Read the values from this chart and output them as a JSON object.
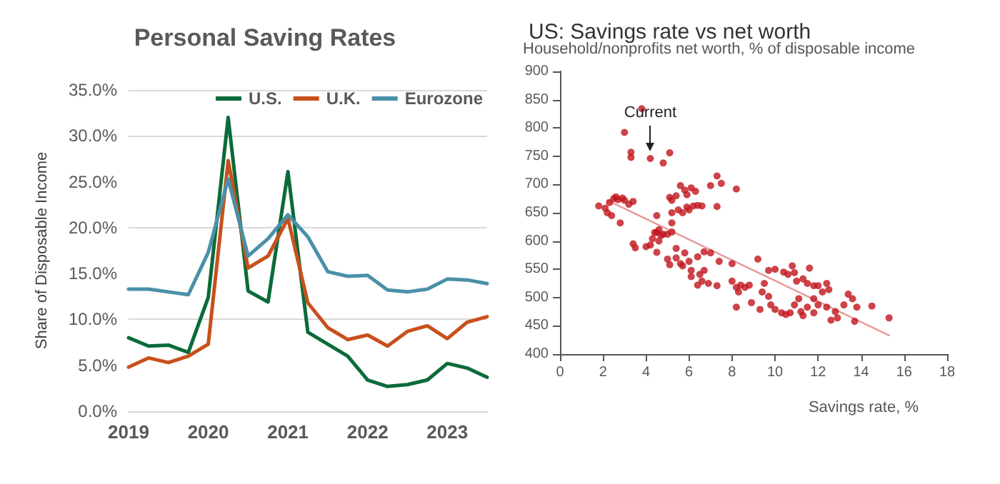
{
  "chart_data": [
    {
      "type": "line",
      "title": "Personal Saving Rates",
      "ylabel": "Share of Disposable Income",
      "categories": [
        "2019",
        null,
        null,
        null,
        "2020",
        null,
        null,
        null,
        "2021",
        null,
        null,
        null,
        "2022",
        null,
        null,
        null,
        "2023",
        null,
        null
      ],
      "series": [
        {
          "name": "U.S.",
          "color": "#0b6b3a",
          "values": [
            8.0,
            7.1,
            7.2,
            6.4,
            12.4,
            32.0,
            13.1,
            11.9,
            26.1,
            8.6,
            7.3,
            6.0,
            3.4,
            2.7,
            2.9,
            3.4,
            5.2,
            4.7,
            3.7
          ]
        },
        {
          "name": "U.K.",
          "color": "#c8501c",
          "values": [
            4.8,
            5.8,
            5.3,
            6.0,
            7.3,
            27.3,
            15.6,
            16.9,
            21.0,
            11.8,
            9.1,
            7.8,
            8.3,
            7.1,
            8.7,
            9.3,
            7.9,
            9.7,
            10.3
          ]
        },
        {
          "name": "Eurozone",
          "color": "#4a90a8",
          "values": [
            13.3,
            13.3,
            13.0,
            12.7,
            17.3,
            25.3,
            16.9,
            18.8,
            21.4,
            19.0,
            15.2,
            14.7,
            14.8,
            13.2,
            13.0,
            13.3,
            14.4,
            14.3,
            13.9
          ]
        }
      ],
      "ylim": [
        0,
        35
      ],
      "yticks": [
        {
          "value": 0,
          "label": "0.0%"
        },
        {
          "value": 5,
          "label": "5.0%"
        },
        {
          "value": 10,
          "label": "10.0%"
        },
        {
          "value": 15,
          "label": "15.0%"
        },
        {
          "value": 20,
          "label": "20.0%"
        },
        {
          "value": 25,
          "label": "25.0%"
        },
        {
          "value": 30,
          "label": "30.0%"
        },
        {
          "value": 35,
          "label": "35.0%"
        }
      ],
      "grid": "y",
      "legend": "top right",
      "marker": "none",
      "line_style": "solid"
    },
    {
      "type": "scatter",
      "title": "US: Savings rate vs net worth",
      "ylabel": "Household/nonprofits net worth, % of disposable income",
      "xlabel": "Savings rate, %",
      "series": [
        {
          "type": "scatter",
          "color": "#c0141c",
          "marker": "circle",
          "x": [
            3.8,
            3.0,
            3.3,
            3.3,
            4.2,
            4.8,
            5.1,
            1.8,
            2.1,
            2.2,
            2.3,
            2.5,
            2.6,
            2.7,
            2.9,
            3.0,
            3.2,
            3.4,
            2.4,
            2.8,
            5.1,
            5.2,
            5.4,
            5.6,
            5.8,
            5.9,
            6.1,
            6.3,
            5.5,
            5.7,
            5.9,
            6.0,
            6.2,
            6.4,
            6.6,
            7.0,
            7.3,
            7.5,
            7.3,
            8.2,
            5.2,
            5.2,
            4.4,
            4.5,
            4.6,
            4.7,
            4.3,
            4.6,
            5.0,
            5.2,
            4.5,
            4.8,
            3.4,
            3.5,
            4.0,
            4.2,
            4.5,
            5.0,
            5.4,
            5.8,
            6.0,
            6.4,
            6.7,
            7.0,
            5.1,
            5.6,
            6.1,
            6.5,
            6.6,
            6.4,
            6.9,
            7.3,
            7.4,
            8.0,
            5.4,
            5.7,
            6.1,
            6.7,
            8.0,
            8.2,
            8.4,
            8.6,
            8.8,
            8.3,
            8.2,
            8.9,
            9.2,
            9.4,
            9.5,
            9.3,
            9.7,
            10.0,
            10.4,
            10.6,
            10.8,
            10.9,
            11.0,
            11.3,
            11.5,
            11.6,
            11.8,
            12.0,
            12.4,
            12.5,
            9.8,
            10.0,
            10.3,
            10.5,
            10.7,
            10.9,
            11.2,
            11.3,
            11.5,
            11.8,
            12.0,
            12.4,
            12.6,
            12.8,
            12.9,
            13.2,
            13.4,
            13.6,
            13.8,
            13.7,
            14.5,
            15.3,
            11.8,
            12.2,
            9.7,
            11.1
          ],
          "values": [
            834,
            792,
            757,
            748,
            746,
            738,
            756,
            662,
            658,
            650,
            668,
            675,
            678,
            673,
            676,
            672,
            665,
            670,
            645,
            632,
            677,
            672,
            680,
            698,
            690,
            682,
            694,
            688,
            655,
            650,
            660,
            655,
            662,
            663,
            662,
            698,
            715,
            702,
            661,
            692,
            650,
            632,
            615,
            615,
            620,
            610,
            604,
            600,
            612,
            616,
            645,
            612,
            595,
            588,
            590,
            593,
            580,
            568,
            587,
            579,
            564,
            572,
            581,
            579,
            558,
            560,
            548,
            541,
            529,
            522,
            525,
            521,
            564,
            560,
            570,
            556,
            537,
            548,
            529,
            518,
            522,
            518,
            522,
            510,
            483,
            491,
            568,
            510,
            525,
            479,
            548,
            550,
            545,
            541,
            556,
            544,
            529,
            533,
            525,
            552,
            521,
            521,
            525,
            514,
            487,
            479,
            473,
            470,
            473,
            487,
            475,
            468,
            483,
            473,
            487,
            483,
            460,
            475,
            464,
            487,
            506,
            498,
            483,
            458,
            485,
            464,
            498,
            510,
            502,
            498
          ]
        },
        {
          "type": "line",
          "color": "#e89a9a",
          "x": [
            2.2,
            15.3
          ],
          "values": [
            672,
            433
          ]
        }
      ],
      "xlim": [
        0,
        18
      ],
      "xticks": [
        0,
        2,
        4,
        6,
        8,
        10,
        12,
        14,
        16,
        18
      ],
      "ylim": [
        400,
        900
      ],
      "yticks": [
        400,
        450,
        500,
        550,
        600,
        650,
        700,
        750,
        800,
        850,
        900
      ],
      "grid": false,
      "annotations": [
        {
          "text": "Current",
          "x": 4.2,
          "y": 746
        }
      ]
    }
  ]
}
